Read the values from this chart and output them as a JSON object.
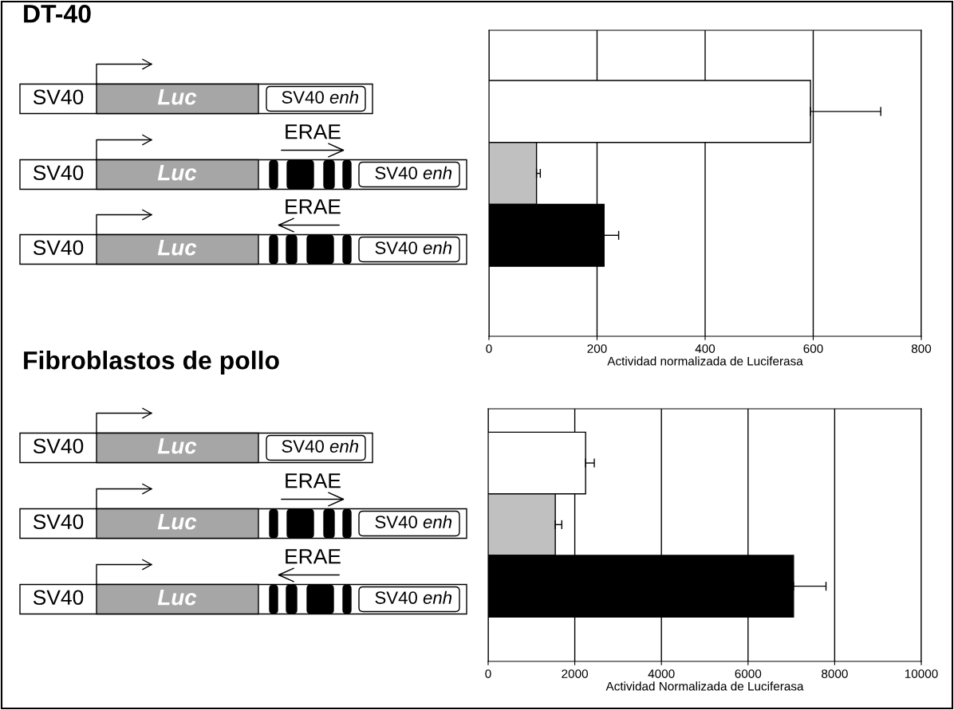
{
  "chart_data": [
    {
      "type": "bar",
      "orientation": "horizontal",
      "xlabel": "Actividad normalizada de Luciferasa",
      "categories": [
        null,
        null,
        null
      ],
      "values": [
        595,
        88,
        213
      ],
      "colors": [
        "#ffffff",
        "#c0c0c0",
        "#000000"
      ],
      "errors": [
        [
          595,
          725
        ],
        [
          88,
          95
        ],
        [
          213,
          240
        ]
      ],
      "xlim": [
        0,
        800
      ],
      "xticks": [
        0,
        200,
        400,
        600,
        800
      ],
      "grid": "x",
      "tick_labels": "x",
      "annotations": [
        "DT-40",
        "SV40",
        "Luc",
        "SV40 enh",
        "SV40",
        "Luc",
        "ERAE",
        "SV40 enh",
        "SV40",
        "Luc",
        "ERAE",
        "SV40 enh"
      ]
    },
    {
      "type": "bar",
      "orientation": "horizontal",
      "xlabel": "Actividad Normalizada de Luciferasa",
      "categories": [
        null,
        null,
        null
      ],
      "values": [
        2250,
        1550,
        7050
      ],
      "colors": [
        "#ffffff",
        "#c0c0c0",
        "#000000"
      ],
      "errors": [
        [
          2250,
          2450
        ],
        [
          1550,
          1700
        ],
        [
          7050,
          7800
        ]
      ],
      "xlim": [
        0,
        10000
      ],
      "xticks": [
        0,
        2000,
        4000,
        6000,
        8000,
        10000
      ],
      "grid": "x",
      "tick_labels": "x",
      "annotations": [
        "Fibroblastos de pollo",
        "SV40",
        "Luc",
        "SV40 enh",
        "SV40",
        "Luc",
        "ERAE",
        "SV40 enh",
        "SV40",
        "Luc",
        "ERAE",
        "SV40 enh"
      ]
    }
  ]
}
